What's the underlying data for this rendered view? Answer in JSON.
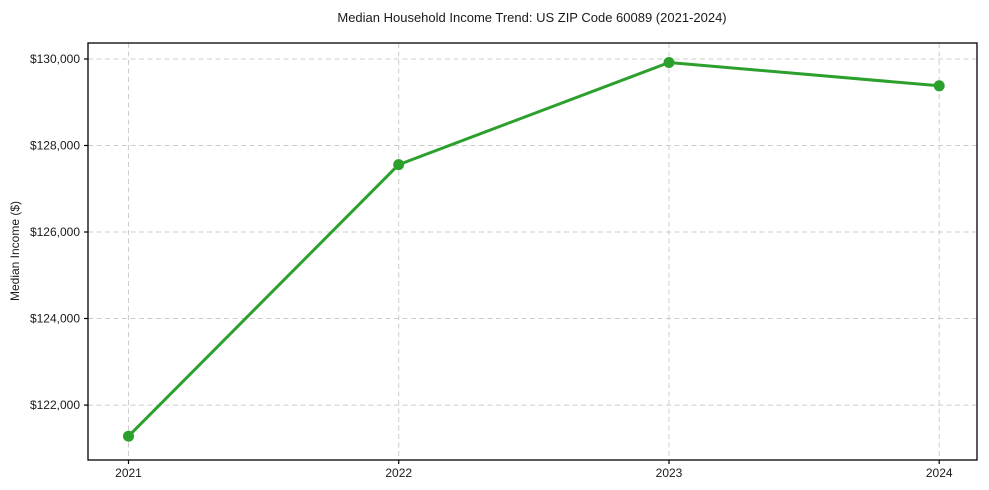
{
  "chart_data": {
    "type": "line",
    "title": "Median Household Income Trend: US ZIP Code 60089 (2021-2024)",
    "xlabel": "",
    "ylabel": "Median Income ($)",
    "categories": [
      2021,
      2022,
      2023,
      2024
    ],
    "series": [
      {
        "name": "Median Household Income",
        "values": [
          121280,
          127560,
          129920,
          129380
        ]
      }
    ],
    "x_tick_labels": [
      "2021",
      "2022",
      "2023",
      "2024"
    ],
    "y_ticks": [
      122000,
      124000,
      126000,
      128000,
      130000
    ],
    "y_tick_labels": [
      "$122,000",
      "$124,000",
      "$126,000",
      "$128,000",
      "$130,000"
    ],
    "xlim": [
      2020.85,
      2024.14
    ],
    "ylim": [
      120730,
      130370
    ],
    "grid": true,
    "legend": "none",
    "line_color": "#2ca02c",
    "grid_color": "#cccccc",
    "axis_color": "#000000",
    "text_color": "#1a1a1a",
    "background_color": "#ffffff"
  }
}
